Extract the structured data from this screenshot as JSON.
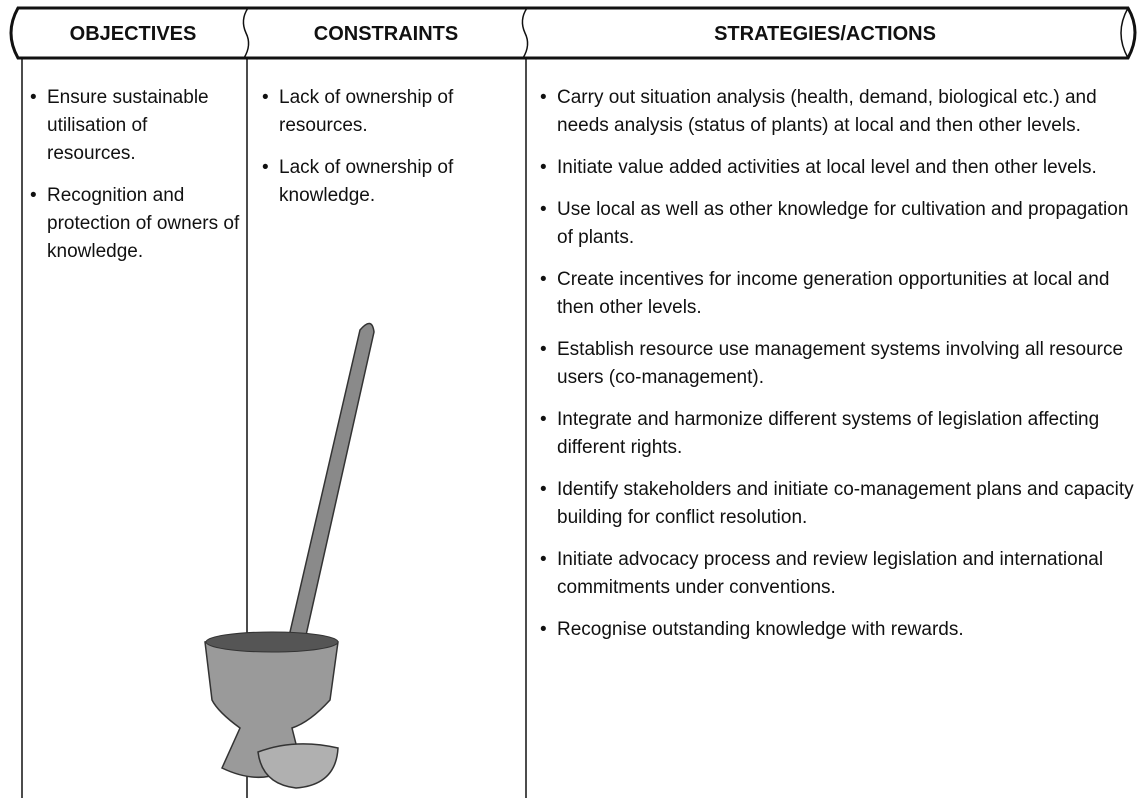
{
  "columns": [
    {
      "header": "OBJECTIVES",
      "items": [
        "Ensure sustainable utilisation of resources.",
        "Recognition and protection of owners of knowledge."
      ]
    },
    {
      "header": "CONSTRAINTS",
      "items": [
        "Lack of ownership of resources.",
        "Lack of ownership of knowledge."
      ]
    },
    {
      "header": "STRATEGIES/ACTIONS",
      "items": [
        "Carry out situation analysis (health, demand, biological etc.) and needs analysis (status of plants) at local and then other levels.",
        "Initiate value added activities at local level and then other levels.",
        "Use local as well as other knowledge for cultivation and propagation of plants.",
        "Create incentives for income generation opportunities at local and then other levels.",
        "Establish resource use management systems involving all resource users (co-management).",
        "Integrate and harmonize different systems of legislation affecting different rights.",
        "Identify stakeholders and initiate co-management plans and capacity building for conflict resolution.",
        "Initiate advocacy process and review legislation and international commitments under conventions.",
        "Recognise outstanding knowledge with rewards."
      ]
    }
  ]
}
